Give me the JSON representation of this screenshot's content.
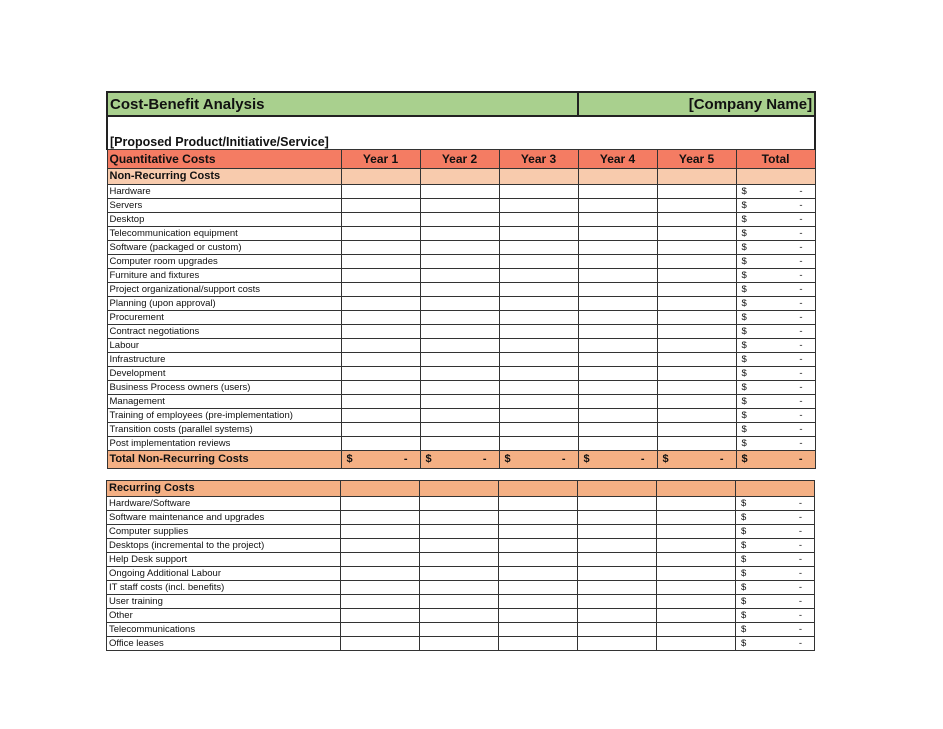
{
  "title": "Cost-Benefit Analysis",
  "company": "[Company Name]",
  "subtitle": "[Proposed Product/Initiative/Service]",
  "header": [
    "Quantitative Costs",
    "Year 1",
    "Year 2",
    "Year 3",
    "Year 4",
    "Year 5",
    "Total"
  ],
  "non_recurring": {
    "label": "Non-Recurring Costs",
    "items": [
      "Hardware",
      "Servers",
      "Desktop",
      "Telecommunication equipment",
      "Software (packaged or custom)",
      "Computer room upgrades",
      "Furniture and fixtures",
      "Project organizational/support costs",
      "Planning (upon approval)",
      "Procurement",
      "Contract negotiations",
      "Labour",
      "Infrastructure",
      "Development",
      "Business Process owners (users)",
      "Management",
      "Training of employees (pre-implementation)",
      "Transition costs (parallel systems)",
      "Post implementation reviews"
    ],
    "total_label": "Total Non-Recurring Costs"
  },
  "recurring": {
    "label": "Recurring Costs",
    "items": [
      "Hardware/Software",
      "Software maintenance and upgrades",
      "Computer supplies",
      "Desktops (incremental to the project)",
      "Help Desk support",
      "Ongoing Additional Labour",
      "IT staff costs (incl. benefits)",
      "User training",
      "Other",
      "Telecommunications",
      "Office leases"
    ]
  },
  "currency": "$",
  "empty_value": "-"
}
